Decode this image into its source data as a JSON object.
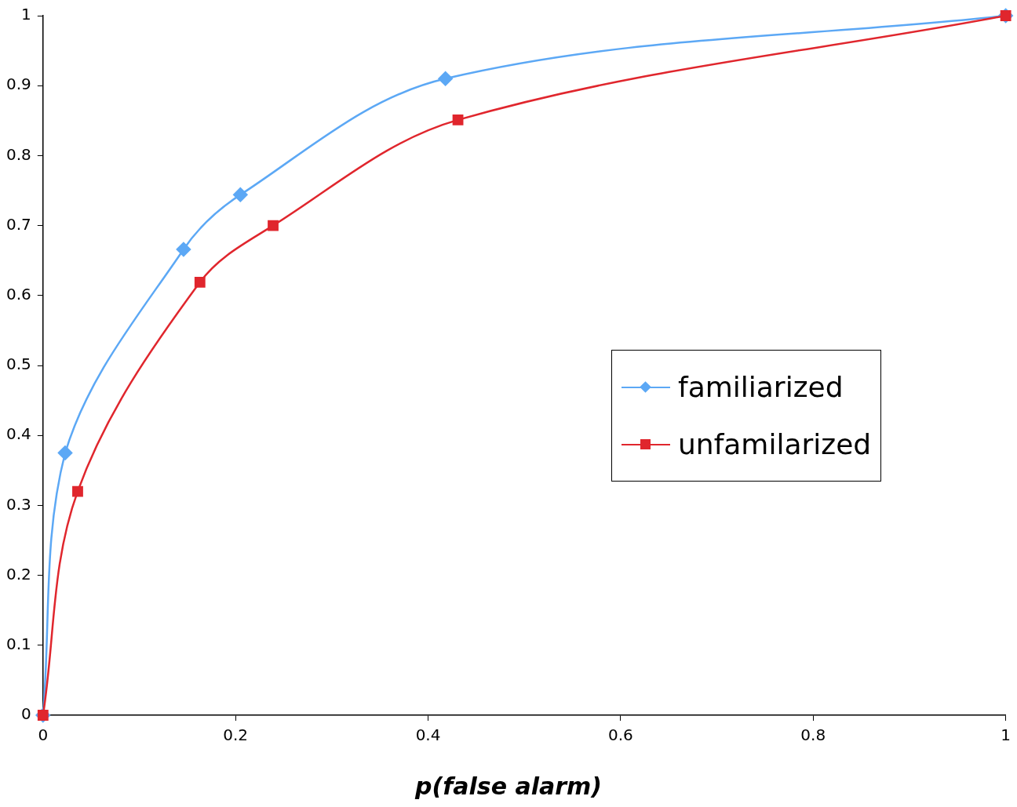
{
  "chart_data": {
    "type": "line",
    "xlabel": "p(false alarm)",
    "xlim": [
      0,
      1
    ],
    "xticks": [
      0,
      0.2,
      0.4,
      0.6,
      0.8,
      1
    ],
    "ylim": [
      0,
      1
    ],
    "yticks": [
      0,
      0.1,
      0.2,
      0.3,
      0.4,
      0.5,
      0.6,
      0.7,
      0.8,
      0.9,
      1
    ],
    "grid": false,
    "legend": "right",
    "series": [
      {
        "name": "familiarized",
        "color": "#5ca8f5",
        "marker": "diamond",
        "x": [
          0,
          0.023,
          0.146,
          0.205,
          0.418,
          1
        ],
        "values": [
          0,
          0.375,
          0.666,
          0.744,
          0.91,
          1
        ]
      },
      {
        "name": "unfamilarized",
        "color": "#e0262d",
        "marker": "square",
        "x": [
          0,
          0.036,
          0.163,
          0.239,
          0.431,
          1
        ],
        "values": [
          0,
          0.32,
          0.619,
          0.7,
          0.851,
          1
        ]
      }
    ]
  }
}
